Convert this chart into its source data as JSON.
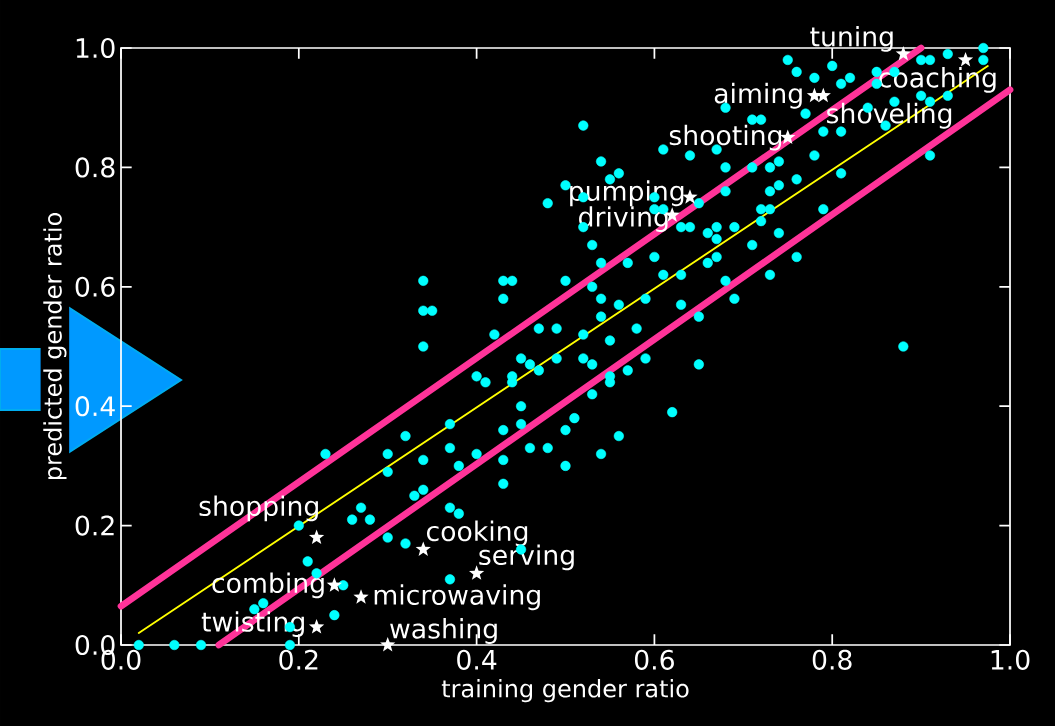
{
  "chart_data": {
    "type": "scatter",
    "xlabel": "training gender ratio",
    "ylabel": "predicted gender ratio",
    "xlim": [
      0,
      1
    ],
    "ylim": [
      0,
      1
    ],
    "xticks": [
      {
        "value": 0,
        "label": "0.0"
      },
      {
        "value": 0.2,
        "label": "0.2"
      },
      {
        "value": 0.4,
        "label": "0.4"
      },
      {
        "value": 0.6,
        "label": "0.6"
      },
      {
        "value": 0.8,
        "label": "0.8"
      },
      {
        "value": 1,
        "label": "1.0"
      }
    ],
    "yticks": [
      {
        "value": 0,
        "label": "0.0"
      },
      {
        "value": 0.2,
        "label": "0.2"
      },
      {
        "value": 0.4,
        "label": "0.4"
      },
      {
        "value": 0.6,
        "label": "0.6"
      },
      {
        "value": 0.8,
        "label": "0.8"
      },
      {
        "value": 1,
        "label": "1.0"
      }
    ],
    "series": [
      {
        "marker": "circle",
        "color": "#00ffff",
        "x": [
          0.52,
          0.54,
          0.56,
          0.55,
          0.5,
          0.48,
          0.61,
          0.64,
          0.67,
          0.68,
          0.71,
          0.72,
          0.68,
          0.74,
          0.71,
          0.73,
          0.76,
          0.78,
          0.74,
          0.73,
          0.68,
          0.81,
          0.79,
          0.81,
          0.77,
          0.81,
          0.82,
          0.75,
          0.76,
          0.78,
          0.8,
          0.85,
          0.85,
          0.87,
          0.9,
          0.91,
          0.93,
          0.97,
          0.97,
          0.9,
          0.91,
          0.93,
          0.87,
          0.84,
          0.86,
          0.91,
          0.79,
          0.88,
          0.72,
          0.73,
          0.72,
          0.74,
          0.76,
          0.73,
          0.71,
          0.67,
          0.67,
          0.67,
          0.69,
          0.66,
          0.65,
          0.63,
          0.66,
          0.68,
          0.69,
          0.65,
          0.63,
          0.59,
          0.6,
          0.61,
          0.58,
          0.59,
          0.65,
          0.55,
          0.54,
          0.56,
          0.54,
          0.54,
          0.57,
          0.53,
          0.5,
          0.53,
          0.47,
          0.49,
          0.52,
          0.49,
          0.52,
          0.53,
          0.45,
          0.46,
          0.47,
          0.44,
          0.52,
          0.52,
          0.6,
          0.61,
          0.63,
          0.64,
          0.6,
          0.57,
          0.55,
          0.44,
          0.23,
          0.3,
          0.32,
          0.3,
          0.34,
          0.37,
          0.37,
          0.38,
          0.4,
          0.43,
          0.43,
          0.43,
          0.34,
          0.33,
          0.37,
          0.38,
          0.27,
          0.28,
          0.26,
          0.2,
          0.3,
          0.32,
          0.21,
          0.22,
          0.25,
          0.37,
          0.24,
          0.16,
          0.15,
          0.19,
          0.02,
          0.06,
          0.09,
          0.19,
          0.4,
          0.41,
          0.44,
          0.34,
          0.34,
          0.35,
          0.34,
          0.43,
          0.43,
          0.42,
          0.45,
          0.45,
          0.55,
          0.53,
          0.51,
          0.5,
          0.56,
          0.62,
          0.48,
          0.46,
          0.54,
          0.5,
          0.45
        ],
        "values": [
          0.87,
          0.81,
          0.79,
          0.78,
          0.77,
          0.74,
          0.83,
          0.82,
          0.83,
          0.8,
          0.88,
          0.88,
          0.9,
          0.81,
          0.8,
          0.8,
          0.78,
          0.82,
          0.77,
          0.76,
          0.76,
          0.79,
          0.86,
          0.86,
          0.89,
          0.94,
          0.95,
          0.98,
          0.96,
          0.95,
          0.97,
          0.96,
          0.94,
          0.96,
          0.98,
          0.98,
          0.99,
          0.98,
          1.0,
          0.92,
          0.91,
          0.92,
          0.91,
          0.9,
          0.87,
          0.82,
          0.73,
          0.5,
          0.73,
          0.73,
          0.71,
          0.69,
          0.65,
          0.62,
          0.67,
          0.65,
          0.68,
          0.7,
          0.7,
          0.69,
          0.74,
          0.62,
          0.64,
          0.61,
          0.58,
          0.55,
          0.57,
          0.58,
          0.65,
          0.62,
          0.53,
          0.48,
          0.47,
          0.51,
          0.58,
          0.57,
          0.55,
          0.64,
          0.64,
          0.67,
          0.61,
          0.6,
          0.53,
          0.53,
          0.52,
          0.48,
          0.48,
          0.47,
          0.48,
          0.47,
          0.46,
          0.61,
          0.7,
          0.75,
          0.73,
          0.73,
          0.7,
          0.7,
          0.75,
          0.46,
          0.45,
          0.45,
          0.32,
          0.32,
          0.35,
          0.29,
          0.31,
          0.37,
          0.33,
          0.3,
          0.32,
          0.36,
          0.31,
          0.27,
          0.26,
          0.25,
          0.23,
          0.22,
          0.23,
          0.21,
          0.21,
          0.2,
          0.18,
          0.17,
          0.14,
          0.12,
          0.1,
          0.11,
          0.05,
          0.07,
          0.06,
          0.03,
          0.0,
          0.0,
          0.0,
          0.0,
          0.45,
          0.44,
          0.44,
          0.61,
          0.56,
          0.56,
          0.5,
          0.61,
          0.58,
          0.52,
          0.4,
          0.37,
          0.44,
          0.42,
          0.38,
          0.36,
          0.35,
          0.39,
          0.33,
          0.33,
          0.32,
          0.3,
          0.16
        ]
      },
      {
        "marker": "star",
        "color": "#ffffff",
        "x": [
          0.88,
          0.95,
          0.78,
          0.79,
          0.75,
          0.64,
          0.62,
          0.22,
          0.34,
          0.4,
          0.24,
          0.27,
          0.22,
          0.3
        ],
        "values": [
          0.99,
          0.98,
          0.92,
          0.92,
          0.85,
          0.75,
          0.72,
          0.18,
          0.16,
          0.12,
          0.1,
          0.08,
          0.03,
          0.0
        ]
      },
      {
        "type": "line",
        "marker": "none",
        "color": "#ffff00",
        "x": [
          0.02,
          0.975
        ],
        "values": [
          0.02,
          0.97
        ]
      },
      {
        "type": "line",
        "marker": "none",
        "color": "#ff3399",
        "x": [
          0,
          0.9
        ],
        "values": [
          0.065,
          1
        ]
      },
      {
        "type": "line",
        "marker": "none",
        "color": "#ff3399",
        "x": [
          0.11,
          1
        ],
        "values": [
          0,
          0.93
        ]
      }
    ],
    "annotations": [
      {
        "text": "tuning",
        "x": 0.88,
        "y": 0.99
      },
      {
        "text": "coaching",
        "x": 0.95,
        "y": 0.98
      },
      {
        "text": "aiming",
        "x": 0.78,
        "y": 0.92
      },
      {
        "text": "shoveling",
        "x": 0.79,
        "y": 0.92
      },
      {
        "text": "shooting",
        "x": 0.75,
        "y": 0.85
      },
      {
        "text": "pumping",
        "x": 0.64,
        "y": 0.75
      },
      {
        "text": "driving",
        "x": 0.62,
        "y": 0.72
      },
      {
        "text": "shopping",
        "x": 0.22,
        "y": 0.18
      },
      {
        "text": "cooking",
        "x": 0.34,
        "y": 0.16
      },
      {
        "text": "serving",
        "x": 0.4,
        "y": 0.12
      },
      {
        "text": "combing",
        "x": 0.24,
        "y": 0.1
      },
      {
        "text": "microwaving",
        "x": 0.27,
        "y": 0.08
      },
      {
        "text": "twisting",
        "x": 0.22,
        "y": 0.03
      },
      {
        "text": "washing",
        "x": 0.3,
        "y": 0.0
      }
    ]
  }
}
